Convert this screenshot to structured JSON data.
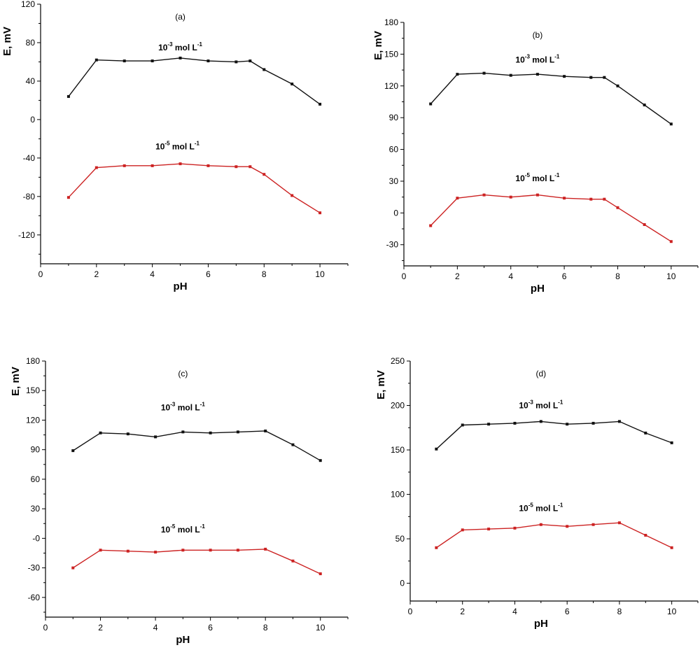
{
  "chart_data": [
    {
      "type": "line",
      "panel_label": "(a)",
      "xlabel": "pH",
      "ylabel": "E, mV",
      "xlim": [
        0,
        11
      ],
      "ylim": [
        -150,
        120
      ],
      "x_ticks": [
        0,
        2,
        4,
        6,
        8,
        10
      ],
      "y_ticks": [
        -120,
        -80,
        -40,
        0,
        40,
        80,
        120
      ],
      "x_tick_labels": [
        "0",
        "2",
        "4",
        "6",
        "8",
        "10"
      ],
      "y_tick_labels": [
        "-120",
        "-80",
        "-40",
        "0",
        "40",
        "80",
        "120"
      ],
      "series": [
        {
          "label_base": "10",
          "label_exp": "-3",
          "label_unit": " mol L",
          "label_unit_exp": "-1",
          "label_at": [
            5,
            72
          ],
          "color": "#111111",
          "x": [
            1,
            2,
            3,
            4,
            5,
            6,
            7,
            7.5,
            8,
            9,
            10
          ],
          "y": [
            24,
            62,
            61,
            61,
            64,
            61,
            60,
            61,
            52,
            37,
            16
          ]
        },
        {
          "label_base": "10",
          "label_exp": "-5",
          "label_unit": " mol L",
          "label_unit_exp": "-1",
          "label_at": [
            4.9,
            -31
          ],
          "color": "#cc2222",
          "x": [
            1,
            2,
            3,
            4,
            5,
            6,
            7,
            7.5,
            8,
            9,
            10
          ],
          "y": [
            -81,
            -50,
            -48,
            -48,
            -46,
            -48,
            -49,
            -49,
            -57,
            -79,
            -97
          ]
        }
      ]
    },
    {
      "type": "line",
      "panel_label": "(b)",
      "xlabel": "pH",
      "ylabel": "E, mV",
      "xlim": [
        0,
        11
      ],
      "ylim": [
        -50,
        180
      ],
      "x_ticks": [
        0,
        2,
        4,
        6,
        8,
        10
      ],
      "y_ticks": [
        -30,
        0,
        30,
        60,
        90,
        120,
        150,
        180
      ],
      "x_tick_labels": [
        "0",
        "2",
        "4",
        "6",
        "8",
        "10"
      ],
      "y_tick_labels": [
        "-30",
        "0",
        "30",
        "60",
        "90",
        "120",
        "150",
        "180"
      ],
      "series": [
        {
          "label_base": "10",
          "label_exp": "-3",
          "label_unit": " mol L",
          "label_unit_exp": "-1",
          "label_at": [
            5,
            142
          ],
          "color": "#111111",
          "x": [
            1,
            2,
            3,
            4,
            5,
            6,
            7,
            7.5,
            8,
            9,
            10
          ],
          "y": [
            103,
            131,
            132,
            130,
            131,
            129,
            128,
            128,
            120,
            102,
            84
          ]
        },
        {
          "label_base": "10",
          "label_exp": "-5",
          "label_unit": " mol L",
          "label_unit_exp": "-1",
          "label_at": [
            5,
            30
          ],
          "color": "#cc2222",
          "x": [
            1,
            2,
            3,
            4,
            5,
            6,
            7,
            7.5,
            8,
            9,
            10
          ],
          "y": [
            -12,
            14,
            17,
            15,
            17,
            14,
            13,
            13,
            5,
            -11,
            -27
          ]
        }
      ]
    },
    {
      "type": "line",
      "panel_label": "(c)",
      "xlabel": "pH",
      "ylabel": "E, mV",
      "xlim": [
        0,
        11
      ],
      "ylim": [
        -80,
        180
      ],
      "x_ticks": [
        0,
        2,
        4,
        6,
        8,
        10
      ],
      "y_ticks": [
        -60,
        -30,
        0,
        30,
        60,
        90,
        120,
        150,
        180
      ],
      "x_tick_labels": [
        "0",
        "2",
        "4",
        "6",
        "8",
        "10"
      ],
      "y_tick_labels": [
        "-60",
        "-30",
        "-0",
        "30",
        "60",
        "90",
        "120",
        "150",
        "180"
      ],
      "series": [
        {
          "label_base": "10",
          "label_exp": "-3",
          "label_unit": " mol L",
          "label_unit_exp": "-1",
          "label_at": [
            5,
            130
          ],
          "color": "#111111",
          "x": [
            1,
            2,
            3,
            4,
            5,
            6,
            7,
            8,
            9,
            10
          ],
          "y": [
            89,
            107,
            106,
            103,
            108,
            107,
            108,
            109,
            95,
            79
          ]
        },
        {
          "label_base": "10",
          "label_exp": "-5",
          "label_unit": " mol L",
          "label_unit_exp": "-1",
          "label_at": [
            5,
            6
          ],
          "color": "#cc2222",
          "x": [
            1,
            2,
            3,
            4,
            5,
            6,
            7,
            8,
            9,
            10
          ],
          "y": [
            -30,
            -12,
            -13,
            -14,
            -12,
            -12,
            -12,
            -11,
            -23,
            -36
          ]
        }
      ]
    },
    {
      "type": "line",
      "panel_label": "(d)",
      "xlabel": "pH",
      "ylabel": "E, mV",
      "xlim": [
        0,
        11
      ],
      "ylim": [
        -20,
        250
      ],
      "x_ticks": [
        0,
        2,
        4,
        6,
        8,
        10
      ],
      "y_ticks": [
        0,
        50,
        100,
        150,
        200,
        250
      ],
      "x_tick_labels": [
        "0",
        "2",
        "4",
        "6",
        "8",
        "10"
      ],
      "y_tick_labels": [
        "0",
        "50",
        "100",
        "150",
        "200",
        "250"
      ],
      "series": [
        {
          "label_base": "10",
          "label_exp": "-3",
          "label_unit": " mol L",
          "label_unit_exp": "-1",
          "label_at": [
            5,
            197
          ],
          "color": "#111111",
          "x": [
            1,
            2,
            3,
            4,
            5,
            6,
            7,
            8,
            9,
            10
          ],
          "y": [
            151,
            178,
            179,
            180,
            182,
            179,
            180,
            182,
            169,
            158
          ]
        },
        {
          "label_base": "10",
          "label_exp": "-5",
          "label_unit": " mol L",
          "label_unit_exp": "-1",
          "label_at": [
            5,
            81
          ],
          "color": "#cc2222",
          "x": [
            1,
            2,
            3,
            4,
            5,
            6,
            7,
            8,
            9,
            10
          ],
          "y": [
            40,
            60,
            61,
            62,
            66,
            64,
            66,
            68,
            54,
            40
          ]
        }
      ]
    }
  ]
}
